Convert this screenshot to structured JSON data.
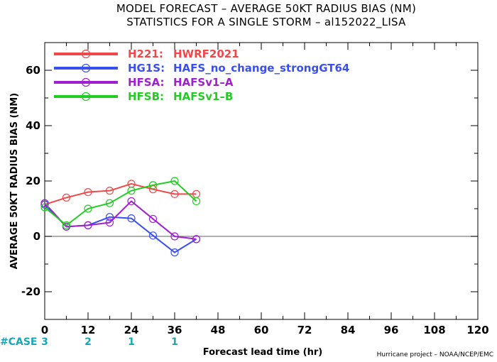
{
  "chart_data": {
    "type": "line",
    "title": "MODEL FORECAST – AVERAGE 50KT RADIUS BIAS (NM)",
    "subtitle": "STATISTICS FOR A SINGLE STORM – al152022_LISA",
    "xlabel": "Forecast lead time (hr)",
    "ylabel": "AVERAGE 50KT RADIUS BIAS (NM)",
    "xlim": [
      0,
      120
    ],
    "ylim": [
      -30,
      70
    ],
    "xticks": [
      0,
      12,
      24,
      36,
      48,
      60,
      72,
      84,
      96,
      108,
      120
    ],
    "yticks": [
      -20,
      0,
      20,
      40,
      60
    ],
    "zero_line": true,
    "grid": false,
    "legend_position": "top-left",
    "series": [
      {
        "name": "H221:",
        "label": "HWRF2021",
        "color": "#f04848",
        "x": [
          0,
          6,
          12,
          18,
          24,
          30,
          36,
          42
        ],
        "y": [
          11.5,
          14,
          16,
          16.5,
          19,
          17,
          15.3,
          15.3
        ]
      },
      {
        "name": "HG1S:",
        "label": "HAFS_no_change_strongGT64",
        "color": "#3a4ff0",
        "x": [
          0,
          6,
          12,
          18,
          24,
          30,
          36,
          42
        ],
        "y": [
          11.5,
          3.5,
          4,
          7,
          6.5,
          0.3,
          -5.8,
          -1
        ]
      },
      {
        "name": "HFSA:",
        "label": "HAFSv1–A",
        "color": "#a020d0",
        "x": [
          0,
          6,
          12,
          18,
          24,
          30,
          36,
          42
        ],
        "y": [
          12,
          3.5,
          4,
          5,
          12.7,
          6.3,
          0,
          -1
        ]
      },
      {
        "name": "HFSB:",
        "label": "HAFSv1–B",
        "color": "#22cc22",
        "x": [
          0,
          6,
          12,
          18,
          24,
          30,
          36,
          42
        ],
        "y": [
          10.5,
          4,
          10,
          12,
          16.5,
          18.5,
          20,
          12.7
        ]
      }
    ],
    "case_label": "#CASE",
    "cases": [
      {
        "x": 0,
        "count": "3"
      },
      {
        "x": 12,
        "count": "2"
      },
      {
        "x": 24,
        "count": "1"
      },
      {
        "x": 36,
        "count": "1"
      }
    ],
    "credit": "Hurricane project – NOAA/NCEP/EMC"
  },
  "colors": {
    "case_text": "#1aa6b7",
    "zero_line": "#808080",
    "axis": "#000000"
  }
}
